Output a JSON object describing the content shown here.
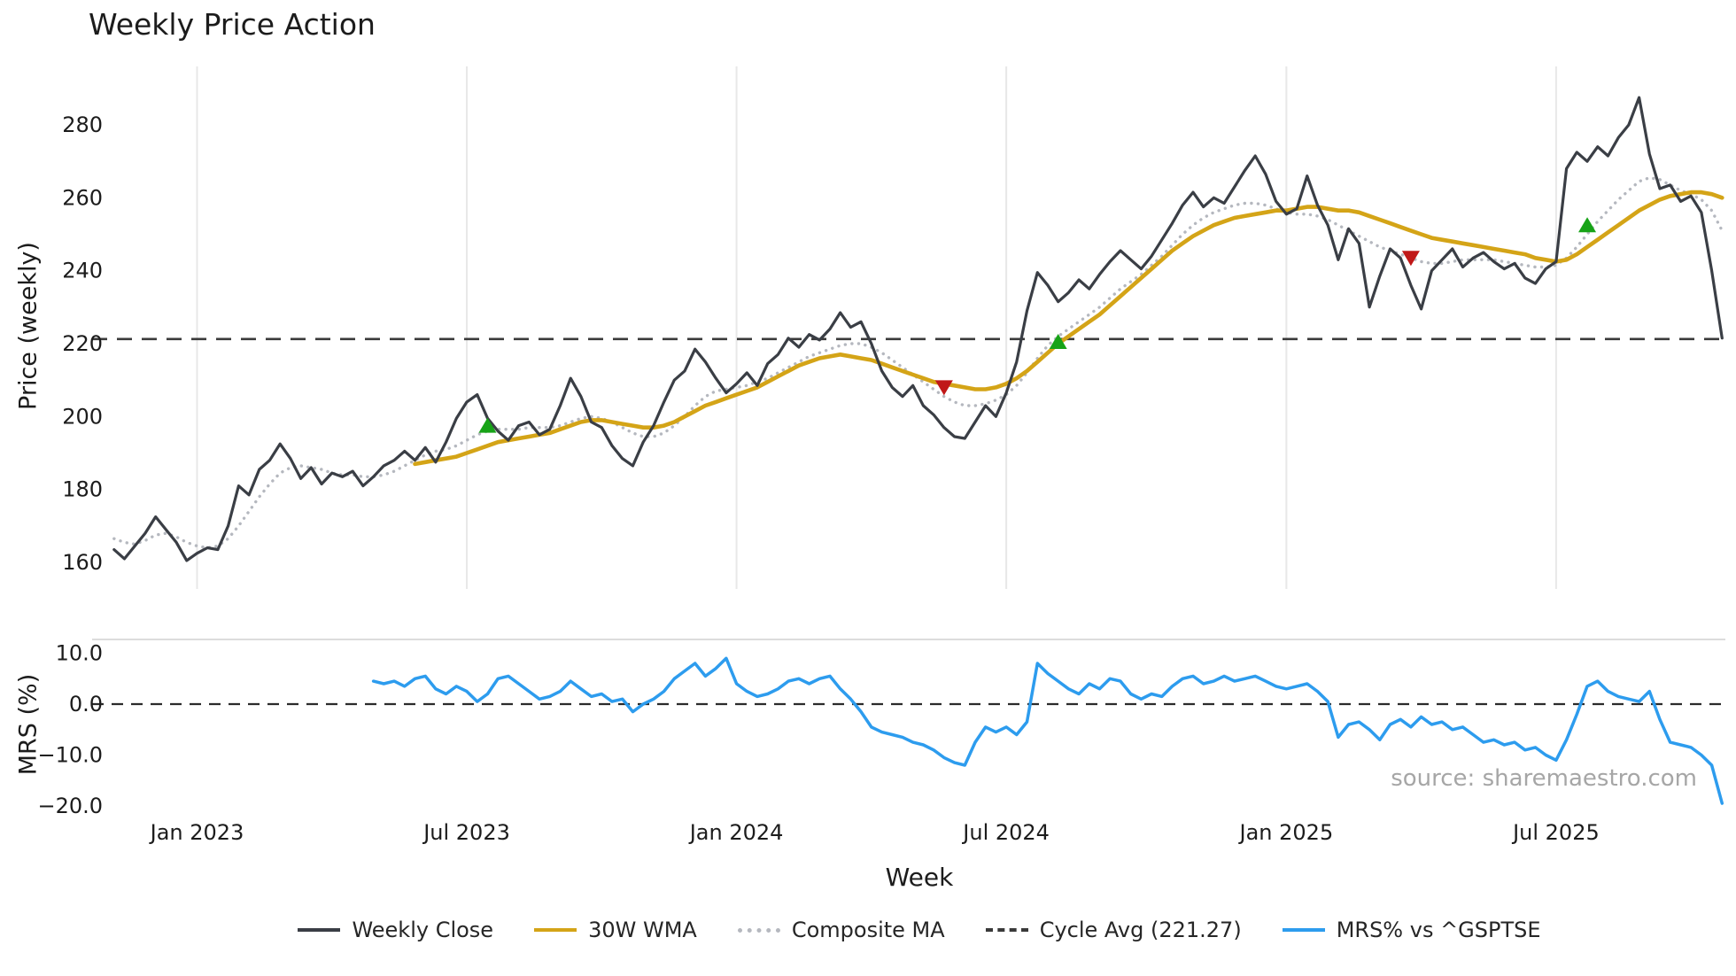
{
  "title": "Weekly Price Action",
  "xlabel": "Week",
  "price_panel": {
    "ylabel": "Price (weekly)"
  },
  "mrs_panel": {
    "ylabel": "MRS (%)",
    "source": "source: sharemaestro.com"
  },
  "legend": [
    {
      "label": "Weekly Close",
      "color": "#3a3e45",
      "style": "solid"
    },
    {
      "label": "30W WMA",
      "color": "#d4a417",
      "style": "solid"
    },
    {
      "label": "Composite MA",
      "color": "#b5b8bf",
      "style": "dotted"
    },
    {
      "label": "Cycle Avg (221.27)",
      "color": "#3a3a3a",
      "style": "dashed"
    },
    {
      "label": "MRS% vs ^GSPTSE",
      "color": "#2d9cee",
      "style": "solid"
    }
  ],
  "chart_data": {
    "type": "line",
    "title": "Weekly Price Action",
    "xlabel": "Week",
    "x": {
      "unit": "week_index",
      "count": 156,
      "ticks": [
        {
          "index": 8,
          "label": "Jan 2023"
        },
        {
          "index": 34,
          "label": "Jul 2023"
        },
        {
          "index": 60,
          "label": "Jan 2024"
        },
        {
          "index": 86,
          "label": "Jul 2024"
        },
        {
          "index": 113,
          "label": "Jan 2025"
        },
        {
          "index": 139,
          "label": "Jul 2025"
        }
      ]
    },
    "panels": [
      {
        "ylabel": "Price (weekly)",
        "ylim": [
          153,
          295
        ],
        "yticks": [
          160,
          180,
          200,
          220,
          240,
          260,
          280
        ],
        "grid": "vertical",
        "cycle_avg": {
          "label": "Cycle Avg",
          "value": 221.27
        },
        "series": [
          {
            "name": "Weekly Close",
            "color": "#3a3e45",
            "style": "solid",
            "start_index": 0,
            "values": [
              163.5,
              161,
              164.5,
              168,
              172.5,
              169,
              165.5,
              160.5,
              162.5,
              164,
              163.5,
              170,
              181,
              178.5,
              185.5,
              188,
              192.5,
              188.5,
              183,
              186,
              181.5,
              184.5,
              183.5,
              185,
              181,
              183.5,
              186.5,
              188,
              190.5,
              188,
              191.5,
              187.5,
              193,
              199.5,
              204,
              206,
              199.5,
              196,
              193.5,
              197.5,
              198.5,
              195,
              196.5,
              203,
              210.5,
              205.5,
              198.5,
              197,
              192,
              188.5,
              186.5,
              193,
              197.5,
              204,
              210,
              212.5,
              218.5,
              215,
              210.5,
              206.5,
              209,
              212,
              208.5,
              214.5,
              217,
              221.5,
              219,
              222.5,
              221,
              224,
              228.5,
              224.5,
              226,
              220,
              212.5,
              208,
              205.5,
              208.5,
              203,
              200.5,
              197,
              194.5,
              194,
              198.5,
              203,
              200,
              206.5,
              215,
              229,
              239.5,
              236,
              231.5,
              234,
              237.5,
              235,
              239,
              242.5,
              245.5,
              243,
              240.5,
              244,
              248.5,
              253,
              258,
              261.5,
              257.5,
              260,
              258.5,
              263,
              267.5,
              271.5,
              266.5,
              259,
              255.5,
              257,
              266,
              258,
              252.5,
              243,
              251.5,
              247.5,
              230,
              238.5,
              246,
              243.5,
              236,
              229.5,
              240,
              243,
              246,
              241,
              243.5,
              245,
              242.5,
              240.5,
              242,
              238,
              236.5,
              240.5,
              242.5,
              268,
              272.5,
              270,
              274,
              271.5,
              276.5,
              280,
              287.5,
              272,
              262.5,
              263.5,
              259,
              260.5,
              256,
              240,
              221.5
            ]
          },
          {
            "name": "30W WMA",
            "color": "#d4a417",
            "style": "solid",
            "start_index": 29,
            "values": [
              187,
              187.5,
              188,
              188.5,
              189,
              190,
              191,
              192,
              193,
              193.5,
              194,
              194.5,
              195,
              195.5,
              196.5,
              197.5,
              198.5,
              199,
              199,
              198.5,
              198,
              197.5,
              197,
              197,
              197.5,
              198.5,
              200,
              201.5,
              203,
              204,
              205,
              206,
              207,
              208,
              209.5,
              211,
              212.5,
              214,
              215,
              216,
              216.5,
              217,
              216.5,
              216,
              215.5,
              214.5,
              213.5,
              212.5,
              211.5,
              210.5,
              209.5,
              209,
              208.5,
              208,
              207.5,
              207.5,
              208,
              209,
              210.5,
              212.5,
              215,
              217.5,
              220,
              222,
              224,
              226,
              228,
              230.5,
              233,
              235.5,
              238,
              240.5,
              243,
              245.5,
              247.5,
              249.5,
              251,
              252.5,
              253.5,
              254.5,
              255,
              255.5,
              256,
              256.5,
              256.5,
              257,
              257.5,
              257.5,
              257,
              256.5,
              256.5,
              256,
              255,
              254,
              253,
              252,
              251,
              250,
              249,
              248.5,
              248,
              247.5,
              247,
              246.5,
              246,
              245.5,
              245,
              244.5,
              243.5,
              243,
              242.5,
              243,
              244.5,
              246.5,
              248.5,
              250.5,
              252.5,
              254.5,
              256.5,
              258,
              259.5,
              260.5,
              261,
              261.5,
              261.5,
              261,
              260
            ]
          },
          {
            "name": "Composite MA",
            "color": "#b5b8bf",
            "style": "dotted",
            "start_index": 0,
            "values": [
              166.5,
              165.5,
              165,
              166,
              167.5,
              168,
              167,
              165.5,
              164.5,
              164,
              164.5,
              166.5,
              170,
              174,
              178,
              181.5,
              184.5,
              186,
              186.5,
              186,
              185.5,
              184.5,
              184,
              184,
              183.5,
              183.5,
              184,
              185,
              186.5,
              188,
              189.5,
              190.5,
              191,
              192,
              193.5,
              195,
              196,
              196.5,
              196.5,
              196.5,
              197,
              197,
              197,
              197.5,
              198.5,
              199.5,
              200,
              199.5,
              198.5,
              197,
              195.5,
              194.5,
              194.5,
              195.5,
              197.5,
              200,
              203,
              205.5,
              207,
              207.5,
              208,
              208.5,
              209.5,
              210.5,
              212,
              213.5,
              215,
              216.5,
              217.5,
              218.5,
              219.5,
              220,
              220,
              219,
              217.5,
              215.5,
              213.5,
              211.5,
              209.5,
              207.5,
              205.5,
              204,
              203,
              203,
              203.5,
              204.5,
              206,
              208.5,
              212,
              216,
              219.5,
              222,
              224,
              226,
              228,
              230,
              232.5,
              235,
              237,
              239,
              241.5,
              244,
              247,
              250,
              252.5,
              254.5,
              256,
              257,
              258,
              258.5,
              258.5,
              258,
              257,
              256,
              255.5,
              255.5,
              255,
              254,
              252.5,
              251,
              249.5,
              248,
              246.5,
              245.5,
              244.5,
              243.5,
              242.5,
              242,
              242,
              242.5,
              243,
              243,
              243,
              243,
              242.5,
              242,
              241.5,
              241,
              241,
              241.5,
              243.5,
              246.5,
              250,
              253.5,
              256.5,
              259.5,
              262,
              264.5,
              265.5,
              265,
              263.5,
              262,
              261,
              259.5,
              256.5,
              251
            ]
          }
        ],
        "signals": {
          "buy_color": "#17a317",
          "sell_color": "#c01818",
          "buy": [
            {
              "week_index": 36,
              "price": 197.5
            },
            {
              "week_index": 91,
              "price": 220.5
            },
            {
              "week_index": 142,
              "price": 252.5
            }
          ],
          "sell": [
            {
              "week_index": 80,
              "price": 208
            },
            {
              "week_index": 125,
              "price": 243.5
            }
          ]
        }
      },
      {
        "ylabel": "MRS (%)",
        "ylim": [
          -22,
          12
        ],
        "yticks": [
          {
            "v": 10,
            "label": "10.0"
          },
          {
            "v": 0,
            "label": "0.0"
          },
          {
            "v": -10,
            "label": "−10.0"
          },
          {
            "v": -20,
            "label": "−20.0"
          }
        ],
        "zero_line": 0,
        "series": [
          {
            "name": "MRS% vs ^GSPTSE",
            "color": "#2d9cee",
            "style": "solid",
            "start_index": 25,
            "values": [
              4.5,
              4,
              4.5,
              3.5,
              5,
              5.5,
              3,
              2,
              3.5,
              2.5,
              0.5,
              2,
              5,
              5.5,
              4,
              2.5,
              1,
              1.5,
              2.5,
              4.5,
              3,
              1.5,
              2,
              0.5,
              1,
              -1.5,
              0,
              1,
              2.5,
              5,
              6.5,
              8,
              5.5,
              7,
              9,
              4,
              2.5,
              1.5,
              2,
              3,
              4.5,
              5,
              4,
              5,
              5.5,
              3,
              1,
              -1.5,
              -4.5,
              -5.5,
              -6,
              -6.5,
              -7.5,
              -8,
              -9,
              -10.5,
              -11.5,
              -12,
              -7.5,
              -4.5,
              -5.5,
              -4.5,
              -6,
              -3.5,
              8,
              6,
              4.5,
              3,
              2,
              4,
              3,
              5,
              4.5,
              2,
              1,
              2,
              1.5,
              3.5,
              5,
              5.5,
              4,
              4.5,
              5.5,
              4.5,
              5,
              5.5,
              4.5,
              3.5,
              3,
              3.5,
              4,
              2.5,
              0.5,
              -6.5,
              -4,
              -3.5,
              -5,
              -7,
              -4,
              -3,
              -4.5,
              -2.5,
              -4,
              -3.5,
              -5,
              -4.5,
              -6,
              -7.5,
              -7,
              -8,
              -7.5,
              -9,
              -8.5,
              -10,
              -11,
              -7,
              -2,
              3.5,
              4.5,
              2.5,
              1.5,
              1,
              0.5,
              2.5,
              -3,
              -7.5,
              -8,
              -8.5,
              -10,
              -12,
              -19.5
            ]
          }
        ]
      }
    ]
  }
}
